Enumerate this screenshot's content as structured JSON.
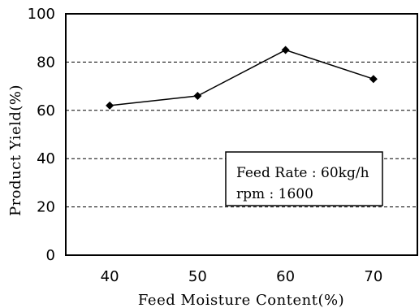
{
  "chart_data": {
    "type": "line",
    "x": [
      40,
      50,
      60,
      70
    ],
    "xticks": [
      "40",
      "50",
      "60",
      "70"
    ],
    "series": [
      {
        "values": [
          62,
          66,
          85,
          73
        ],
        "marker": "diamond",
        "color": "#000000"
      }
    ],
    "xlabel": "Feed Moisture Content(%)",
    "ylabel": "Product Yield(%)",
    "ylim": [
      0,
      100
    ],
    "yticks": [
      "0",
      "20",
      "40",
      "60",
      "80",
      "100"
    ],
    "grid": "horizontal dashed",
    "annotation": {
      "line1": "Feed Rate : 60kg/h",
      "line2": "rpm : 1600"
    }
  }
}
